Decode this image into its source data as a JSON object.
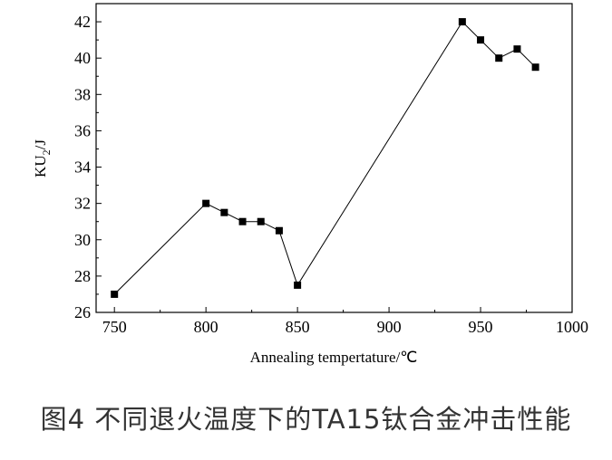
{
  "chart_data": {
    "type": "line",
    "x": [
      750,
      800,
      810,
      820,
      830,
      840,
      850,
      940,
      950,
      960,
      970,
      980
    ],
    "y": [
      27,
      32,
      31.5,
      31,
      31,
      30.5,
      27.5,
      42,
      41,
      40,
      40.5,
      39.5
    ],
    "marker": "square",
    "xlabel": "Annealing tempertature/℃",
    "ylabel_main": "KU",
    "ylabel_sub": "2",
    "ylabel_unit": "/J",
    "xlim": [
      740,
      1000
    ],
    "ylim": [
      26,
      43
    ],
    "xticks": [
      750,
      800,
      850,
      900,
      950,
      1000
    ],
    "yticks": [
      26,
      28,
      30,
      32,
      34,
      36,
      38,
      40,
      42
    ],
    "grid": false,
    "color": "#000000"
  },
  "caption": "图4  不同退火温度下的TA15钛合金冲击性能"
}
